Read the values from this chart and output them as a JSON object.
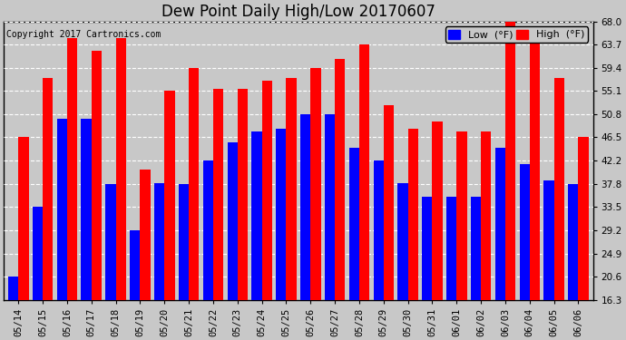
{
  "title": "Dew Point Daily High/Low 20170607",
  "copyright": "Copyright 2017 Cartronics.com",
  "dates": [
    "05/14",
    "05/15",
    "05/16",
    "05/17",
    "05/18",
    "05/19",
    "05/20",
    "05/21",
    "05/22",
    "05/23",
    "05/24",
    "05/25",
    "05/26",
    "05/27",
    "05/28",
    "05/29",
    "05/30",
    "05/31",
    "06/01",
    "06/02",
    "06/03",
    "06/04",
    "06/05",
    "06/06"
  ],
  "low": [
    20.6,
    33.5,
    50.0,
    50.0,
    37.8,
    29.2,
    38.0,
    37.8,
    42.2,
    45.5,
    47.5,
    48.0,
    50.8,
    50.8,
    44.5,
    42.2,
    38.0,
    35.5,
    35.5,
    35.5,
    44.5,
    41.5,
    38.5,
    37.8
  ],
  "high": [
    46.5,
    57.5,
    65.0,
    62.5,
    65.0,
    40.5,
    55.1,
    59.4,
    55.5,
    55.5,
    57.0,
    57.5,
    59.4,
    61.0,
    63.7,
    52.5,
    48.0,
    49.5,
    47.5,
    47.5,
    68.0,
    65.5,
    57.5,
    46.5
  ],
  "ymin": 16.3,
  "ymax": 68.0,
  "yticks": [
    16.3,
    20.6,
    24.9,
    29.2,
    33.5,
    37.8,
    42.2,
    46.5,
    50.8,
    55.1,
    59.4,
    63.7,
    68.0
  ],
  "bar_width": 0.42,
  "low_color": "#0000ff",
  "high_color": "#ff0000",
  "bg_color": "#c8c8c8",
  "grid_color": "#ffffff",
  "title_fontsize": 12,
  "copyright_fontsize": 7,
  "tick_fontsize": 7.5,
  "legend_fontsize": 8
}
